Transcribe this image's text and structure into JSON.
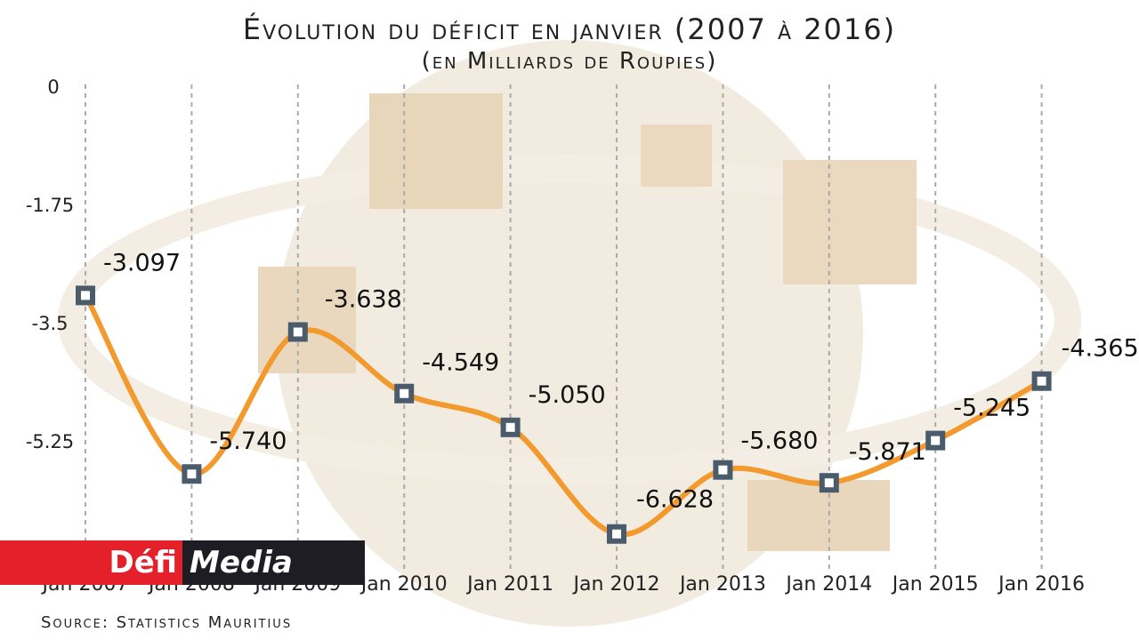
{
  "chart_data": {
    "type": "line",
    "title": "Évolution du déficit en janvier (2007 à 2016)",
    "subtitle": "(en Milliards de Roupies)",
    "categories": [
      "Jan 2007",
      "Jan 2008",
      "Jan 2009",
      "Jan 2010",
      "Jan 2011",
      "Jan 2012",
      "Jan 2013",
      "Jan 2014",
      "Jan 2015",
      "Jan 2016"
    ],
    "values": [
      -3.097,
      -5.74,
      -3.638,
      -4.549,
      -5.05,
      -6.628,
      -5.68,
      -5.871,
      -5.245,
      -4.365
    ],
    "data_labels": [
      "-3.097",
      "-5.740",
      "-3.638",
      "-4.549",
      "-5.050",
      "-6.628",
      "-5.680",
      "-5.871",
      "-5.245",
      "-4.365"
    ],
    "yticks": [
      "0",
      "-1.75",
      "-3.5",
      "-5.25"
    ],
    "ytick_values": [
      0,
      -1.75,
      -3.5,
      -5.25
    ],
    "ylim": [
      -7,
      0
    ],
    "grid": "vertical dashed",
    "line_color": "#f29a2e",
    "marker_color": "#4a5b6c"
  },
  "source": "Source: Statistics Mauritius",
  "logo": {
    "part1": "Défi",
    "part2": "Media",
    "red": "#e4202a",
    "dark": "#1e1d24"
  }
}
